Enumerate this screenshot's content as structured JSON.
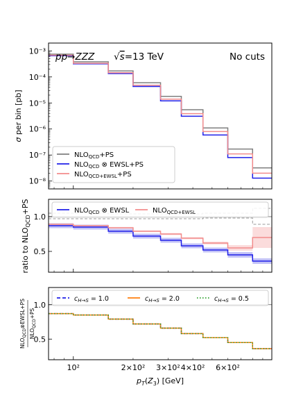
{
  "chart_data": [
    {
      "type": "line",
      "panel": "top",
      "title_left": "pp→ZZZ",
      "title_center": "√s=13 TeV",
      "title_right": "No cuts",
      "ylabel": "σ per bin [pb]",
      "yscale": "log",
      "ylim": [
        5e-09,
        0.002
      ],
      "yticks": [
        {
          "v": 1e-08,
          "label": "10⁻⁸"
        },
        {
          "v": 1e-07,
          "label": "10⁻⁷"
        },
        {
          "v": 1e-06,
          "label": "10⁻⁶"
        },
        {
          "v": 1e-05,
          "label": "10⁻⁵"
        },
        {
          "v": 0.0001,
          "label": "10⁻⁴"
        },
        {
          "v": 0.001,
          "label": "10⁻³"
        }
      ],
      "edges": [
        75,
        100,
        150,
        200,
        275,
        350,
        450,
        600,
        800,
        1000
      ],
      "legend_position": "lower-left",
      "series": [
        {
          "name": "NLO_QCD+PS",
          "color": "#7f7f7f",
          "values": [
            0.00075,
            0.00038,
            0.00017,
            6e-05,
            1.8e-05,
            5.5e-06,
            1.1e-06,
            1.7e-07,
            3.2e-08
          ]
        },
        {
          "name": "NLO_QCD ⊗ EWSL+PS",
          "color": "#1f1fe8",
          "values": [
            0.00065,
            0.00032,
            0.000135,
            4.3e-05,
            1.2e-05,
            3.1e-06,
            5.9e-07,
            8e-08,
            1.3e-08
          ]
        },
        {
          "name": "NLO_QCD+EWSL+PS",
          "color": "#f28c8c",
          "values": [
            0.00068,
            0.000335,
            0.000145,
            4.8e-05,
            1.4e-05,
            3.9e-06,
            8e-07,
            1.1e-07,
            2e-08
          ]
        }
      ]
    },
    {
      "type": "line",
      "panel": "middle",
      "ylabel": "ratio to NLO_QCD+PS",
      "ylim": [
        0.2,
        1.25
      ],
      "yticks": [
        0.5,
        1.0
      ],
      "edges": [
        75,
        100,
        150,
        200,
        275,
        350,
        450,
        600,
        800,
        1000
      ],
      "legend_position": "top",
      "series": [
        {
          "name": "NLO_QCD ⊗ EWSL",
          "color": "#1f1fe8",
          "band_color": "#8f8ff0",
          "values": [
            0.87,
            0.85,
            0.79,
            0.72,
            0.66,
            0.58,
            0.52,
            0.45,
            0.36
          ],
          "band": [
            0.035,
            0.035,
            0.035,
            0.035,
            0.035,
            0.035,
            0.035,
            0.04,
            0.04
          ]
        },
        {
          "name": "NLO_QCD+EWSL",
          "color": "#f28c8c",
          "band_color": "#f7c0c0",
          "values": [
            0.89,
            0.87,
            0.84,
            0.79,
            0.75,
            0.69,
            0.62,
            0.55,
            0.7
          ],
          "band": [
            0.012,
            0.012,
            0.012,
            0.012,
            0.015,
            0.015,
            0.02,
            0.04,
            0.15
          ]
        },
        {
          "name": "ps_uncertainty_upper",
          "color": "#999999",
          "dashed": true,
          "values": [
            1.05,
            1.05,
            1.04,
            1.04,
            1.04,
            1.04,
            1.05,
            1.05,
            1.12
          ]
        },
        {
          "name": "ps_uncertainty_lower",
          "color": "#999999",
          "dashed": true,
          "values": [
            0.97,
            0.97,
            0.97,
            0.97,
            0.97,
            0.97,
            0.98,
            0.98,
            0.89
          ]
        }
      ]
    },
    {
      "type": "line",
      "panel": "bottom",
      "ylabel": "NLO_QCD⊗EWSL+PS / NLO_QCD+PS",
      "xlabel": "p_T(Z_3) [GeV]",
      "xscale": "log",
      "xlim": [
        75,
        1000
      ],
      "xticks": [
        {
          "v": 100,
          "label": "10²"
        },
        {
          "v": 200,
          "label": "2×10²"
        },
        {
          "v": 300,
          "label": "3×10²"
        },
        {
          "v": 400,
          "label": "4×10²"
        },
        {
          "v": 600,
          "label": "6×10²"
        }
      ],
      "ylim": [
        0.2,
        1.25
      ],
      "yticks": [
        0.5,
        1.0
      ],
      "edges": [
        75,
        100,
        150,
        200,
        275,
        350,
        450,
        600,
        800,
        1000
      ],
      "legend_position": "top",
      "series": [
        {
          "name": "c_H→S = 1.0",
          "color": "#1f1fe8",
          "style": "dashed",
          "values": [
            0.87,
            0.85,
            0.79,
            0.72,
            0.66,
            0.58,
            0.52,
            0.45,
            0.36
          ]
        },
        {
          "name": "c_H→S = 2.0",
          "color": "#ff7f0e",
          "style": "solid",
          "values": [
            0.87,
            0.85,
            0.79,
            0.72,
            0.66,
            0.58,
            0.52,
            0.45,
            0.36
          ]
        },
        {
          "name": "c_H→S = 0.5",
          "color": "#2ca02c",
          "style": "dotted",
          "values": [
            0.87,
            0.85,
            0.79,
            0.72,
            0.66,
            0.58,
            0.52,
            0.45,
            0.36
          ]
        }
      ]
    }
  ]
}
